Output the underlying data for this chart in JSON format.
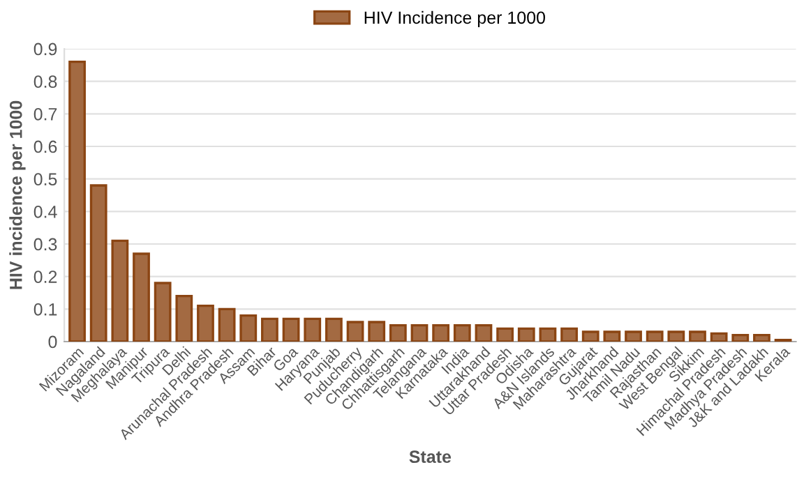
{
  "chart_data": {
    "type": "bar",
    "xlabel": "State",
    "ylabel": "HIV incidence per 1000",
    "categories": [
      "Mizoram",
      "Nagaland",
      "Meghalaya",
      "Manipur",
      "Tripura",
      "Delhi",
      "Arunachal Pradesh",
      "Andhra Pradesh",
      "Assam",
      "Bihar",
      "Goa",
      "Haryana",
      "Punjab",
      "Puducherry",
      "Chandigarh",
      "Chhattisgarh",
      "Telangana",
      "Karnataka",
      "India",
      "Uttarakhand",
      "Uttar Pradesh",
      "Odisha",
      "A&N Islands",
      "Maharashtra",
      "Gujarat",
      "Jharkhand",
      "Tamil Nadu",
      "Rajasthan",
      "West Bengal",
      "Sikkim",
      "Himachal Pradesh",
      "Madhya Pradesh",
      "J&K and Ladakh",
      "Kerala"
    ],
    "series": [
      {
        "name": "HIV Incidence per 1000",
        "color": "#a36a42",
        "values": [
          0.86,
          0.48,
          0.31,
          0.27,
          0.18,
          0.14,
          0.11,
          0.1,
          0.08,
          0.07,
          0.07,
          0.07,
          0.07,
          0.06,
          0.06,
          0.05,
          0.05,
          0.05,
          0.05,
          0.05,
          0.04,
          0.04,
          0.04,
          0.04,
          0.03,
          0.03,
          0.03,
          0.03,
          0.03,
          0.03,
          0.025,
          0.02,
          0.02,
          0.005
        ]
      }
    ],
    "ylim": [
      0,
      0.9
    ],
    "yticks": [
      0,
      0.1,
      0.2,
      0.3,
      0.4,
      0.5,
      0.6,
      0.7,
      0.8,
      0.9
    ],
    "grid": "y",
    "legend": "top"
  }
}
